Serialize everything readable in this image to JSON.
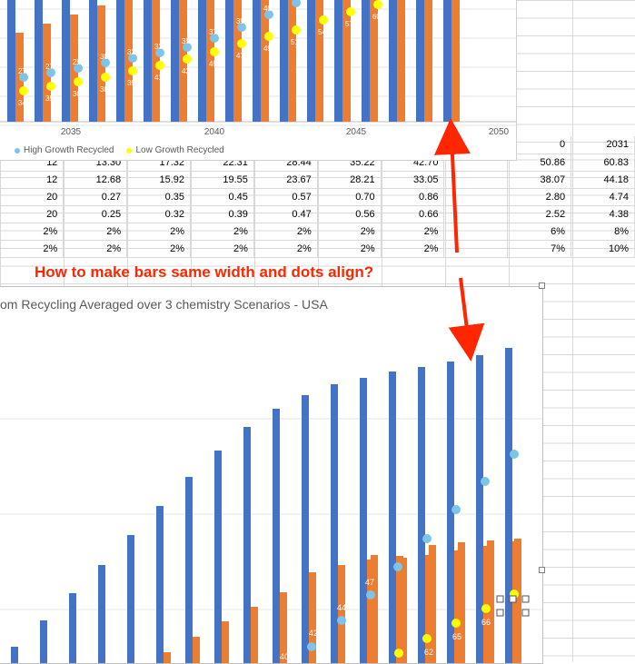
{
  "annotation": "How to make bars same width and dots align?",
  "top_chart": {
    "x_ticks": [
      "2035",
      "2040",
      "2045",
      "2050"
    ],
    "legend": [
      {
        "label": "High Growth Recycled",
        "color": "#7ec3e8"
      },
      {
        "label": "Low Growth Recycled",
        "color": "#ffff00"
      }
    ]
  },
  "bottom_chart": {
    "title": "om Recycling Averaged over 3 chemistry Scenarios - USA"
  },
  "sheet": {
    "rows": [
      [
        "12",
        "13.30",
        "17.32",
        "22.31",
        "28.44",
        "35.22",
        "42.70",
        "",
        "50.86",
        "60.83"
      ],
      [
        "12",
        "12.68",
        "15.92",
        "19.55",
        "23.67",
        "28.21",
        "33.05",
        "",
        "38.07",
        "44.18"
      ],
      [
        "20",
        "0.27",
        "0.35",
        "0.45",
        "0.57",
        "0.70",
        "0.86",
        "",
        "2.80",
        "4.74"
      ],
      [
        "20",
        "0.25",
        "0.32",
        "0.39",
        "0.47",
        "0.56",
        "0.66",
        "",
        "2.52",
        "4.38"
      ],
      [
        "2%",
        "2%",
        "2%",
        "2%",
        "2%",
        "2%",
        "2%",
        "",
        "6%",
        "8%"
      ],
      [
        "2%",
        "2%",
        "2%",
        "2%",
        "2%",
        "2%",
        "2%",
        "",
        "7%",
        "10%"
      ]
    ],
    "header_right": [
      "0",
      "2031"
    ]
  },
  "chart_data": [
    {
      "type": "bar",
      "x": [
        "2035",
        "2036",
        "2037",
        "2038",
        "2039",
        "2040",
        "2041",
        "2042",
        "2043",
        "2044",
        "2045",
        "2046",
        "2047",
        "2048",
        "2049",
        "2050"
      ],
      "series": [
        {
          "name": "High Growth Recycled",
          "kind": "dot",
          "color": "#7ec3e8",
          "labels": [
            "27%",
            "27%",
            "29%",
            "30%",
            "32%",
            "33%",
            "35%",
            "37%",
            "39%",
            "40%",
            "",
            "",
            "",
            "",
            "",
            ""
          ]
        },
        {
          "name": "Low Growth Recycled",
          "kind": "dot",
          "color": "#ffff00",
          "labels": [
            "34%",
            "35%",
            "36%",
            "38%",
            "39%",
            "41%",
            "43%",
            "45%",
            "47%",
            "49%",
            "51%",
            "54%",
            "57%",
            "60%",
            "62%",
            "65%"
          ]
        }
      ]
    },
    {
      "type": "bar",
      "title": "om Recycling Averaged over 3 chemistry Scenarios - USA",
      "point_labels": [
        "40",
        "42",
        "44",
        "47",
        "49",
        "62",
        "65",
        "66"
      ]
    }
  ]
}
